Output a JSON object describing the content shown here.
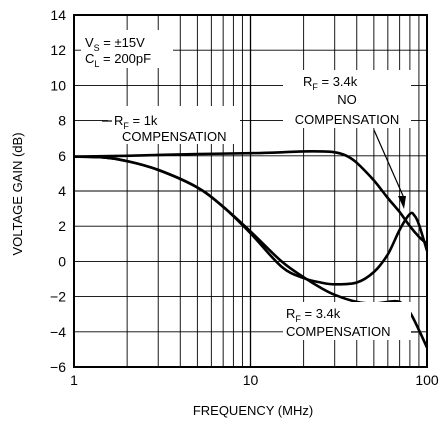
{
  "chart_data": {
    "type": "line",
    "xlabel": "FREQUENCY (MHz)",
    "ylabel": "VOLTAGE GAIN (dB)",
    "x_scale": "log",
    "xlim": [
      1,
      100
    ],
    "ylim": [
      -6,
      14
    ],
    "x_ticks": [
      "1",
      "10",
      "100"
    ],
    "y_ticks": [
      "14",
      "12",
      "10",
      "8",
      "6",
      "4",
      "2",
      "0",
      "−2",
      "−4",
      "−6"
    ],
    "grid": true,
    "conditions": {
      "vs_main": "V",
      "vs_sub": "S",
      "vs_value": " = ±15V",
      "cl_main": "C",
      "cl_sub": "L",
      "cl_value": " = 200pF"
    },
    "series": [
      {
        "name": "RF = 1k COMPENSATION",
        "label_parts": {
          "main": "R",
          "sub": "F",
          "value": " = 1k",
          "line2": "COMPENSATION"
        },
        "x": [
          1,
          2,
          3,
          5,
          10,
          15,
          20,
          25,
          30,
          35,
          40,
          50,
          60,
          70,
          80,
          90,
          100
        ],
        "y": [
          5.95,
          6.0,
          6.05,
          6.1,
          6.15,
          6.2,
          6.25,
          6.25,
          6.2,
          6.0,
          5.6,
          4.6,
          3.6,
          2.8,
          2.0,
          1.4,
          1.0
        ]
      },
      {
        "name": "RF = 3.4k NO COMPENSATION",
        "label_parts": {
          "main": "R",
          "sub": "F",
          "value": " = 3.4k",
          "line2": "NO",
          "line3": "COMPENSATION"
        },
        "x": [
          1,
          1.5,
          2,
          3,
          5,
          7,
          10,
          15,
          20,
          25,
          30,
          40,
          50,
          60,
          70,
          80,
          85,
          90,
          100
        ],
        "y": [
          5.95,
          5.9,
          5.7,
          5.2,
          4.2,
          3.1,
          1.6,
          -0.3,
          -0.95,
          -1.2,
          -1.3,
          -1.2,
          -0.6,
          0.4,
          1.8,
          2.7,
          2.6,
          2.1,
          0.6
        ]
      },
      {
        "name": "RF = 3.4k COMPENSATION",
        "label_parts": {
          "main": "R",
          "sub": "F",
          "value": " = 3.4k",
          "line2": "COMPENSATION"
        },
        "x": [
          1,
          1.5,
          2,
          3,
          5,
          7,
          10,
          15,
          20,
          25,
          30,
          40,
          50,
          60,
          70,
          80,
          90,
          100
        ],
        "y": [
          5.95,
          5.9,
          5.7,
          5.2,
          4.2,
          3.1,
          1.7,
          0.0,
          -0.9,
          -1.5,
          -1.9,
          -2.3,
          -2.4,
          -2.3,
          -2.3,
          -2.9,
          -3.9,
          -4.9
        ]
      }
    ]
  }
}
